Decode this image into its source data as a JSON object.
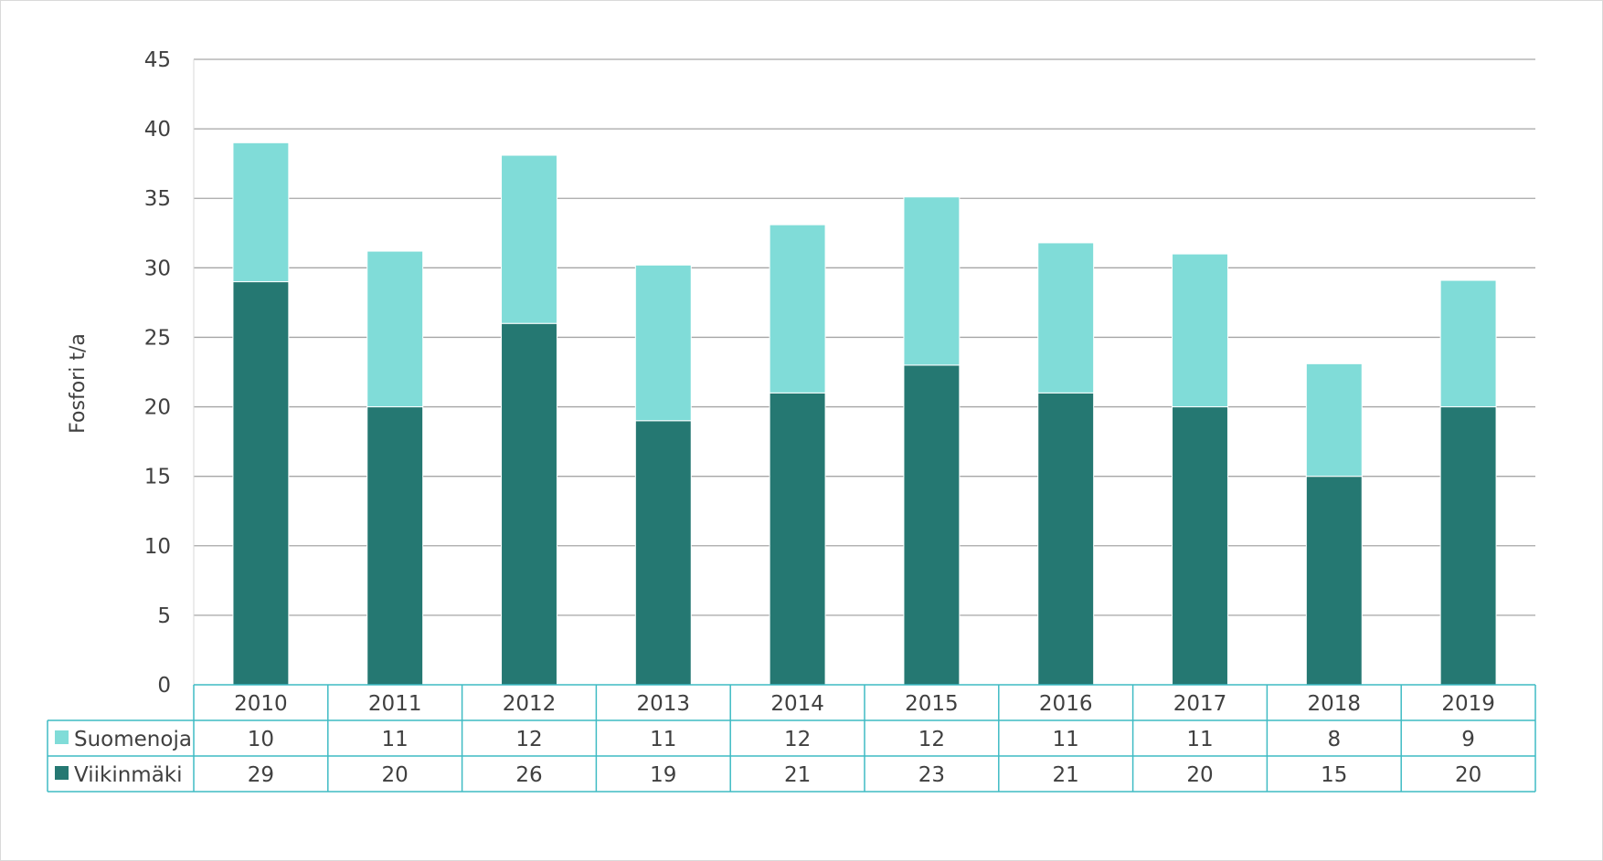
{
  "chart_data": {
    "type": "bar",
    "stacked": true,
    "ylabel": "Fosfori t/a",
    "ylim": [
      0,
      45
    ],
    "yticks": [
      0,
      5,
      10,
      15,
      20,
      25,
      30,
      35,
      40,
      45
    ],
    "grid": true,
    "legend": "data-table",
    "categories": [
      "2010",
      "2011",
      "2012",
      "2013",
      "2014",
      "2015",
      "2016",
      "2017",
      "2018",
      "2019"
    ],
    "series": [
      {
        "name": "Viikinmäki",
        "color": "#257872",
        "values": [
          29,
          20,
          26,
          19,
          21,
          23,
          21,
          20,
          15,
          20
        ],
        "labels": [
          "29",
          "20",
          "26",
          "19",
          "21",
          "23",
          "21",
          "20",
          "15",
          "20"
        ]
      },
      {
        "name": "Suomenoja",
        "color": "#80dcd8",
        "values": [
          10,
          11.2,
          12.1,
          11.2,
          12.1,
          12.1,
          10.8,
          11,
          8.1,
          9.1
        ],
        "labels": [
          "10",
          "11",
          "12",
          "11",
          "12",
          "12",
          "11",
          "11",
          "8",
          "9"
        ]
      }
    ]
  }
}
